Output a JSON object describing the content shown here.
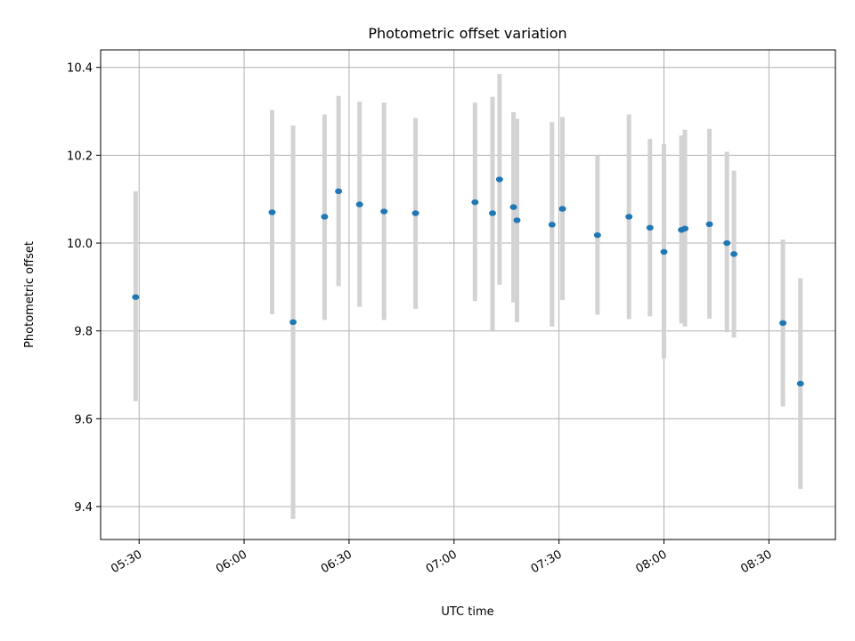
{
  "chart_data": {
    "type": "scatter",
    "title": "Photometric offset variation",
    "xlabel": "UTC time",
    "ylabel": "Photometric offset",
    "xlim": [
      "05:19",
      "08:49"
    ],
    "ylim": [
      9.325,
      10.44
    ],
    "grid": true,
    "x_ticks": [
      "05:30",
      "06:00",
      "06:30",
      "07:00",
      "07:30",
      "08:00",
      "08:30"
    ],
    "y_ticks": [
      "9.4",
      "9.6",
      "9.8",
      "10.0",
      "10.2",
      "10.4"
    ],
    "colors": {
      "point": "#1f77b4",
      "errorbar": "#d3d3d3",
      "grid": "#b0b0b0"
    },
    "series": [
      {
        "points": [
          {
            "x": "05:29",
            "y": 9.877,
            "lo": 9.64,
            "hi": 10.118
          },
          {
            "x": "06:08",
            "y": 10.07,
            "lo": 9.838,
            "hi": 10.303
          },
          {
            "x": "06:14",
            "y": 9.82,
            "lo": 9.372,
            "hi": 10.268
          },
          {
            "x": "06:23",
            "y": 10.06,
            "lo": 9.825,
            "hi": 10.293
          },
          {
            "x": "06:27",
            "y": 10.118,
            "lo": 9.902,
            "hi": 10.335
          },
          {
            "x": "06:33",
            "y": 10.088,
            "lo": 9.855,
            "hi": 10.322
          },
          {
            "x": "06:40",
            "y": 10.072,
            "lo": 9.825,
            "hi": 10.32
          },
          {
            "x": "06:49",
            "y": 10.068,
            "lo": 9.85,
            "hi": 10.285
          },
          {
            "x": "07:06",
            "y": 10.093,
            "lo": 9.868,
            "hi": 10.32
          },
          {
            "x": "07:11",
            "y": 10.068,
            "lo": 9.8,
            "hi": 10.333
          },
          {
            "x": "07:13",
            "y": 10.145,
            "lo": 9.905,
            "hi": 10.385
          },
          {
            "x": "07:17",
            "y": 10.082,
            "lo": 9.865,
            "hi": 10.298
          },
          {
            "x": "07:18",
            "y": 10.052,
            "lo": 9.82,
            "hi": 10.283
          },
          {
            "x": "07:28",
            "y": 10.042,
            "lo": 9.81,
            "hi": 10.275
          },
          {
            "x": "07:31",
            "y": 10.078,
            "lo": 9.87,
            "hi": 10.287
          },
          {
            "x": "07:41",
            "y": 10.018,
            "lo": 9.837,
            "hi": 10.2
          },
          {
            "x": "07:50",
            "y": 10.06,
            "lo": 9.827,
            "hi": 10.293
          },
          {
            "x": "07:56",
            "y": 10.035,
            "lo": 9.833,
            "hi": 10.237
          },
          {
            "x": "08:00",
            "y": 9.98,
            "lo": 9.737,
            "hi": 10.225
          },
          {
            "x": "08:05",
            "y": 10.03,
            "lo": 9.817,
            "hi": 10.245
          },
          {
            "x": "08:06",
            "y": 10.033,
            "lo": 9.81,
            "hi": 10.258
          },
          {
            "x": "08:13",
            "y": 10.043,
            "lo": 9.828,
            "hi": 10.26
          },
          {
            "x": "08:18",
            "y": 10.0,
            "lo": 9.797,
            "hi": 10.208
          },
          {
            "x": "08:20",
            "y": 9.975,
            "lo": 9.785,
            "hi": 10.165
          },
          {
            "x": "08:34",
            "y": 9.818,
            "lo": 9.628,
            "hi": 10.008
          },
          {
            "x": "08:39",
            "y": 9.68,
            "lo": 9.44,
            "hi": 9.92
          }
        ]
      }
    ]
  }
}
